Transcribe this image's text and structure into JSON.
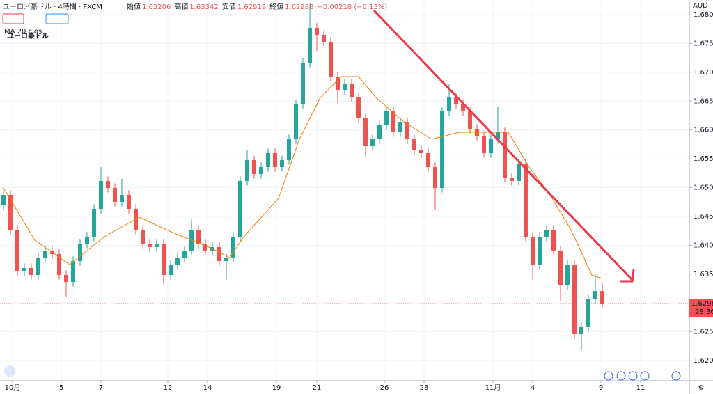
{
  "chart_data": {
    "type": "candlestick",
    "title": "ユーロ豪ドル",
    "symbol": "ユーロ／豪ドル · 4時間 · FXCM",
    "header_labels": [
      "始値",
      "高値",
      "安値",
      "終値"
    ],
    "change": "−0.00218 (−0.13%)",
    "currency": "AUD",
    "countdown": "28:36",
    "up_color": "#26a69a",
    "down_color": "#ef5350",
    "ma": {
      "name": "MA 20 clos",
      "color": "#f57c00",
      "x": [
        0,
        4.5,
        9.5,
        14.5,
        19.5,
        24.5,
        29.5,
        32.5,
        34.5,
        39.5,
        42.5,
        45.5,
        48.5,
        51,
        53.5,
        57.5,
        61.5,
        65.5,
        69.5,
        72.5,
        75.5,
        78.5,
        81.5,
        84.5,
        86
      ],
      "values": [
        1.64994,
        1.64089,
        1.63666,
        1.64149,
        1.64487,
        1.64209,
        1.63968,
        1.63787,
        1.64149,
        1.64813,
        1.65839,
        1.66563,
        1.66926,
        1.66926,
        1.66563,
        1.66141,
        1.65839,
        1.6596,
        1.6596,
        1.6596,
        1.65356,
        1.64873,
        1.6427,
        1.63485,
        1.63425
      ]
    },
    "ohlc": [
      [
        1.647,
        1.64953,
        1.6462,
        1.64873
      ],
      [
        1.64873,
        1.64953,
        1.6419,
        1.6427
      ],
      [
        1.6427,
        1.6435,
        1.63465,
        1.63545
      ],
      [
        1.63545,
        1.63686,
        1.63465,
        1.63606
      ],
      [
        1.63606,
        1.63686,
        1.63405,
        1.63485
      ],
      [
        1.63485,
        1.63867,
        1.63405,
        1.63787
      ],
      [
        1.63787,
        1.63988,
        1.63707,
        1.63908
      ],
      [
        1.63908,
        1.63988,
        1.63767,
        1.63847
      ],
      [
        1.63847,
        1.63927,
        1.63405,
        1.63485
      ],
      [
        1.63485,
        1.63565,
        1.63104,
        1.63364
      ],
      [
        1.63364,
        1.63806,
        1.63284,
        1.63726
      ],
      [
        1.63726,
        1.64108,
        1.63646,
        1.64028
      ],
      [
        1.64028,
        1.64229,
        1.63948,
        1.64149
      ],
      [
        1.64149,
        1.64712,
        1.64069,
        1.64632
      ],
      [
        1.64632,
        1.65355,
        1.64552,
        1.65115
      ],
      [
        1.65115,
        1.65195,
        1.64914,
        1.64994
      ],
      [
        1.64994,
        1.65074,
        1.64673,
        1.64753
      ],
      [
        1.64753,
        1.65153,
        1.64673,
        1.64873
      ],
      [
        1.64873,
        1.64953,
        1.64552,
        1.64632
      ],
      [
        1.64632,
        1.64712,
        1.6419,
        1.6427
      ],
      [
        1.6427,
        1.6435,
        1.63948,
        1.64028
      ],
      [
        1.64028,
        1.64108,
        1.63888,
        1.63968
      ],
      [
        1.63968,
        1.64108,
        1.63888,
        1.64028
      ],
      [
        1.64028,
        1.64108,
        1.63305,
        1.63485
      ],
      [
        1.63485,
        1.63746,
        1.63405,
        1.63666
      ],
      [
        1.63666,
        1.63867,
        1.63586,
        1.63787
      ],
      [
        1.63787,
        1.63988,
        1.63707,
        1.63908
      ],
      [
        1.63908,
        1.6445,
        1.63828,
        1.6427
      ],
      [
        1.6427,
        1.6435,
        1.63948,
        1.64028
      ],
      [
        1.64028,
        1.64108,
        1.63828,
        1.63908
      ],
      [
        1.63908,
        1.64048,
        1.63828,
        1.63968
      ],
      [
        1.63968,
        1.64048,
        1.63646,
        1.63726
      ],
      [
        1.63726,
        1.63867,
        1.63406,
        1.63787
      ],
      [
        1.63787,
        1.64229,
        1.63707,
        1.64149
      ],
      [
        1.64149,
        1.65195,
        1.64069,
        1.65115
      ],
      [
        1.65115,
        1.65657,
        1.65035,
        1.65477
      ],
      [
        1.65477,
        1.65557,
        1.65155,
        1.65235
      ],
      [
        1.65235,
        1.65436,
        1.65155,
        1.65356
      ],
      [
        1.65356,
        1.65678,
        1.65276,
        1.65598
      ],
      [
        1.65598,
        1.65678,
        1.65276,
        1.65356
      ],
      [
        1.65356,
        1.65557,
        1.65276,
        1.65477
      ],
      [
        1.65477,
        1.65919,
        1.65397,
        1.65839
      ],
      [
        1.65839,
        1.66523,
        1.65759,
        1.66443
      ],
      [
        1.66443,
        1.67247,
        1.66363,
        1.67167
      ],
      [
        1.67167,
        1.682,
        1.67087,
        1.67771
      ],
      [
        1.67771,
        1.67851,
        1.6737,
        1.6765
      ],
      [
        1.6765,
        1.6773,
        1.67449,
        1.67529
      ],
      [
        1.67529,
        1.67609,
        1.66846,
        1.66926
      ],
      [
        1.66926,
        1.67006,
        1.66464,
        1.66684
      ],
      [
        1.66684,
        1.66885,
        1.66604,
        1.66805
      ],
      [
        1.66805,
        1.66885,
        1.66483,
        1.66563
      ],
      [
        1.66563,
        1.66643,
        1.66121,
        1.66201
      ],
      [
        1.66201,
        1.66281,
        1.65538,
        1.65718
      ],
      [
        1.65718,
        1.65919,
        1.65638,
        1.65839
      ],
      [
        1.65839,
        1.66161,
        1.65759,
        1.66081
      ],
      [
        1.66081,
        1.66402,
        1.66001,
        1.66322
      ],
      [
        1.66322,
        1.66402,
        1.6588,
        1.6596
      ],
      [
        1.6596,
        1.66221,
        1.6588,
        1.66141
      ],
      [
        1.66141,
        1.66221,
        1.65759,
        1.65839
      ],
      [
        1.65839,
        1.65919,
        1.65578,
        1.65658
      ],
      [
        1.65658,
        1.65738,
        1.65518,
        1.65598
      ],
      [
        1.65598,
        1.65678,
        1.65276,
        1.65356
      ],
      [
        1.65356,
        1.65436,
        1.64614,
        1.64994
      ],
      [
        1.64994,
        1.66402,
        1.64914,
        1.66322
      ],
      [
        1.66322,
        1.66803,
        1.66242,
        1.66563
      ],
      [
        1.66563,
        1.66643,
        1.66363,
        1.66443
      ],
      [
        1.66443,
        1.66523,
        1.66242,
        1.66322
      ],
      [
        1.66322,
        1.66402,
        1.6594,
        1.6602
      ],
      [
        1.6602,
        1.661,
        1.65819,
        1.65899
      ],
      [
        1.65899,
        1.65979,
        1.65518,
        1.65598
      ],
      [
        1.65598,
        1.65919,
        1.65518,
        1.65839
      ],
      [
        1.65839,
        1.66402,
        1.65759,
        1.6596
      ],
      [
        1.6596,
        1.6604,
        1.65095,
        1.65175
      ],
      [
        1.65175,
        1.65255,
        1.65035,
        1.65115
      ],
      [
        1.65115,
        1.65497,
        1.65035,
        1.65417
      ],
      [
        1.65417,
        1.65497,
        1.64069,
        1.64149
      ],
      [
        1.64149,
        1.64229,
        1.63406,
        1.63666
      ],
      [
        1.63666,
        1.64229,
        1.63586,
        1.64149
      ],
      [
        1.64149,
        1.6435,
        1.64069,
        1.6427
      ],
      [
        1.6427,
        1.6435,
        1.63828,
        1.63908
      ],
      [
        1.63908,
        1.63988,
        1.63024,
        1.63304
      ],
      [
        1.63304,
        1.63746,
        1.63224,
        1.63666
      ],
      [
        1.63666,
        1.63746,
        1.62379,
        1.62459
      ],
      [
        1.62459,
        1.6266,
        1.62179,
        1.6258
      ],
      [
        1.6258,
        1.63143,
        1.625,
        1.63063
      ],
      [
        1.63063,
        1.63505,
        1.62983,
        1.63206
      ],
      [
        1.63206,
        1.63342,
        1.62919,
        1.62988
      ]
    ],
    "xlim": [
      -0.5,
      98.5
    ],
    "xticks": [
      {
        "value": 1.3,
        "label": "10月"
      },
      {
        "value": 8.3,
        "label": "5"
      },
      {
        "value": 14,
        "label": "7"
      },
      {
        "value": 23.6,
        "label": "12"
      },
      {
        "value": 29.3,
        "label": "14"
      },
      {
        "value": 39.2,
        "label": "19"
      },
      {
        "value": 45,
        "label": "21"
      },
      {
        "value": 54.7,
        "label": "26"
      },
      {
        "value": 60.4,
        "label": "28"
      },
      {
        "value": 70.3,
        "label": "11月"
      },
      {
        "value": 76,
        "label": "4"
      },
      {
        "value": 85.8,
        "label": "9"
      },
      {
        "value": 91.5,
        "label": "11"
      }
    ],
    "ylim": [
      1.61674,
      1.68254
    ],
    "yticks": [
      {
        "value": 1.62,
        "label": "1.62000"
      },
      {
        "value": 1.625,
        "label": "1.62500"
      },
      {
        "value": 1.63,
        "label": "1.63000"
      },
      {
        "value": 1.635,
        "label": "1.63500"
      },
      {
        "value": 1.64,
        "label": "1.64000"
      },
      {
        "value": 1.645,
        "label": "1.64500"
      },
      {
        "value": 1.65,
        "label": "1.65000"
      },
      {
        "value": 1.655,
        "label": "1.65500"
      },
      {
        "value": 1.66,
        "label": "1.66000"
      },
      {
        "value": 1.665,
        "label": "1.66500"
      },
      {
        "value": 1.67,
        "label": "1.67000"
      },
      {
        "value": 1.675,
        "label": "1.67500"
      },
      {
        "value": 1.68,
        "label": "1.68000"
      }
    ],
    "grid": true
  }
}
